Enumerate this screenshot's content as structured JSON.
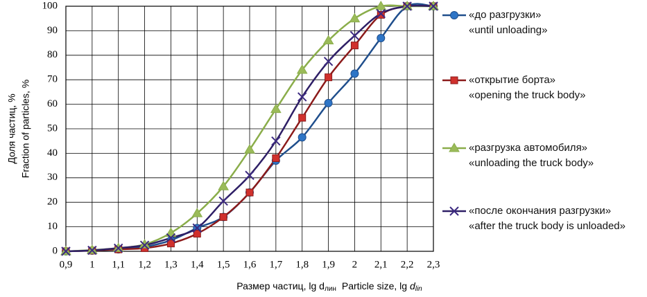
{
  "chart_data": {
    "type": "line",
    "y_label": [
      "Доля  частиц, %",
      "Fraction of particles, %"
    ],
    "x_label": {
      "ru": "Размер частиц, lg d",
      "ru_sub": "лин",
      "en": "Particle size, lg ",
      "en_d": "d",
      "en_sub": "lin"
    },
    "x": [
      0.9,
      1.0,
      1.1,
      1.2,
      1.3,
      1.4,
      1.5,
      1.6,
      1.7,
      1.8,
      1.9,
      2.0,
      2.1,
      2.2,
      2.3
    ],
    "xlim": [
      0.9,
      2.3
    ],
    "xticks": [
      {
        "value": 0.9,
        "label": "0,9"
      },
      1,
      {
        "value": 1.1,
        "label": "1,1"
      },
      {
        "value": 1.2,
        "label": "1,2"
      },
      {
        "value": 1.3,
        "label": "1,3"
      },
      {
        "value": 1.4,
        "label": "1,4"
      },
      {
        "value": 1.5,
        "label": "1,5"
      },
      {
        "value": 1.6,
        "label": "1,6"
      },
      {
        "value": 1.7,
        "label": "1,7"
      },
      {
        "value": 1.8,
        "label": "1,8"
      },
      {
        "value": 1.9,
        "label": "1,9"
      },
      2,
      {
        "value": 2.1,
        "label": "2,1"
      },
      {
        "value": 2.2,
        "label": "2,2"
      },
      {
        "value": 2.3,
        "label": "2,3"
      }
    ],
    "ylim": [
      0,
      100
    ],
    "yticks": [
      0,
      10,
      20,
      30,
      40,
      50,
      60,
      70,
      80,
      90,
      100
    ],
    "grid": true,
    "series": [
      {
        "name": "«до разгрузки»\n«until unloading»",
        "color": "#1f4e8c",
        "marker_color": "#2e75c6",
        "marker": "circle",
        "values": [
          0,
          0.3,
          0.8,
          1.8,
          4.5,
          9.5,
          14,
          24,
          37,
          46.5,
          60.5,
          72.5,
          87,
          100,
          100
        ]
      },
      {
        "name": "«открытие борта»\n«opening the truck body»",
        "color": "#8b1a1a",
        "marker_color": "#d0312d",
        "marker": "square",
        "values": [
          0,
          0.3,
          0.8,
          1.3,
          3.2,
          7.2,
          14,
          24,
          38,
          54.5,
          71,
          84,
          96.5,
          100,
          100
        ]
      },
      {
        "name": "«разгрузка автомобиля»\n«unloading the truck body»",
        "color": "#8aad4a",
        "marker_color": "#9bbb59",
        "marker": "triangle",
        "values": [
          0,
          0.5,
          1.3,
          2.8,
          7.5,
          15.5,
          26.5,
          41.5,
          58,
          74,
          86,
          95,
          100,
          100,
          100
        ]
      },
      {
        "name": "«после окончания разгрузки»\n«after the truck body is unloaded»",
        "color": "#2e1f66",
        "marker_color": "#3c2a80",
        "marker": "x",
        "values": [
          0,
          0.4,
          1.3,
          2.5,
          5.5,
          9.5,
          20.5,
          31,
          45,
          63,
          77.5,
          88,
          97,
          100,
          100
        ]
      }
    ]
  }
}
